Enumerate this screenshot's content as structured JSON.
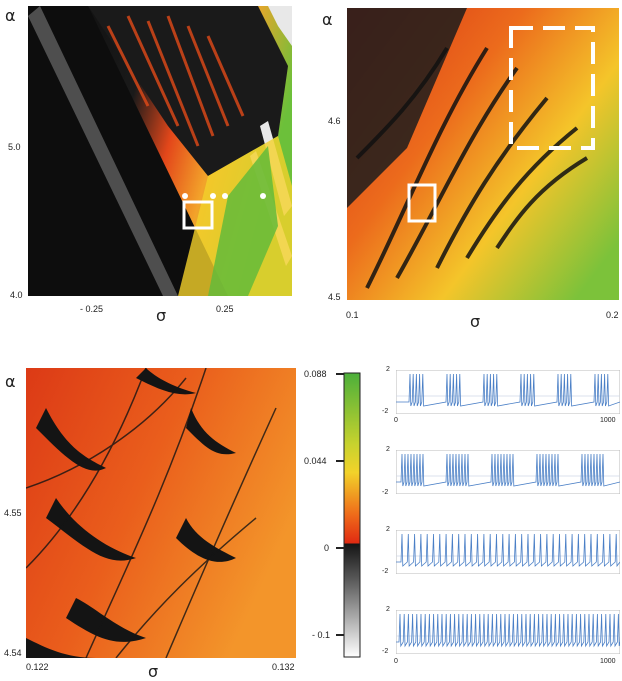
{
  "panel_a": {
    "y_label": "α",
    "x_label": "σ",
    "y_ticks": [
      "5.0",
      "4.0"
    ],
    "x_ticks": [
      "- 0.25",
      "0.25"
    ]
  },
  "panel_b": {
    "y_label": "α",
    "x_label": "σ",
    "y_ticks": [
      "4.6",
      "4.5"
    ],
    "x_ticks": [
      "0.1",
      "0.2"
    ]
  },
  "panel_c": {
    "y_label": "α",
    "x_label": "σ",
    "y_ticks": [
      "4.55",
      "4.54"
    ],
    "x_ticks": [
      "0.122",
      "0.132"
    ]
  },
  "colorbar": {
    "ticks": [
      "0.088",
      "0.044",
      "0",
      "- 0.1"
    ],
    "colors": {
      "green": "#4caf3a",
      "yellow": "#f2d22a",
      "orange": "#ef6a1a",
      "red": "#e02a12",
      "black": "#141414",
      "white": "#ffffff"
    }
  },
  "traces": {
    "line_color": "#4a7fc6",
    "plots": [
      {
        "y_top": "2",
        "y_bottom": "-2",
        "x_start": "0",
        "x_end": "1000"
      },
      {
        "y_top": "2",
        "y_bottom": "-2",
        "x_start": "",
        "x_end": ""
      },
      {
        "y_top": "2",
        "y_bottom": "-2",
        "x_start": "",
        "x_end": ""
      },
      {
        "y_top": "2",
        "y_bottom": "-2",
        "x_start": "0",
        "x_end": "1000"
      }
    ]
  }
}
